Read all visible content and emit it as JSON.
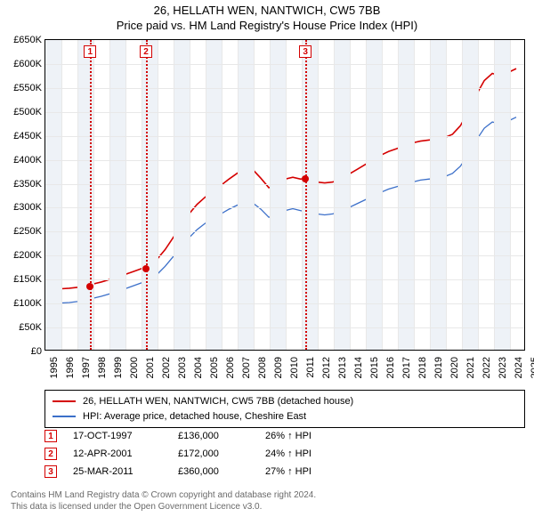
{
  "title_line1": "26, HELLATH WEN, NANTWICH, CW5 7BB",
  "title_line2": "Price paid vs. HM Land Registry's House Price Index (HPI)",
  "chart": {
    "type": "line",
    "background_color": "#ffffff",
    "grid_color": "#e8e8e8",
    "band_color": "#eef2f7",
    "xlim": [
      1995,
      2025
    ],
    "ylim": [
      0,
      650000
    ],
    "ylabels": [
      "£0",
      "£50K",
      "£100K",
      "£150K",
      "£200K",
      "£250K",
      "£300K",
      "£350K",
      "£400K",
      "£450K",
      "£500K",
      "£550K",
      "£600K",
      "£650K"
    ],
    "xticks": [
      1995,
      1996,
      1997,
      1998,
      1999,
      2000,
      2001,
      2002,
      2003,
      2004,
      2005,
      2006,
      2007,
      2008,
      2009,
      2010,
      2011,
      2012,
      2013,
      2014,
      2015,
      2016,
      2017,
      2018,
      2019,
      2020,
      2021,
      2022,
      2023,
      2024,
      2025
    ],
    "band_years": [
      [
        1995,
        1996
      ],
      [
        1997,
        1998
      ],
      [
        1999,
        2000
      ],
      [
        2001,
        2002
      ],
      [
        2003,
        2004
      ],
      [
        2005,
        2006
      ],
      [
        2007,
        2008
      ],
      [
        2009,
        2010
      ],
      [
        2011,
        2012
      ],
      [
        2013,
        2014
      ],
      [
        2015,
        2016
      ],
      [
        2017,
        2018
      ],
      [
        2019,
        2020
      ],
      [
        2021,
        2022
      ],
      [
        2023,
        2024
      ]
    ],
    "series": [
      {
        "name": "red",
        "color": "#d40000",
        "width": 1.6,
        "points": [
          [
            1995.0,
            130000
          ],
          [
            1995.5,
            129000
          ],
          [
            1996.0,
            128000
          ],
          [
            1996.5,
            129000
          ],
          [
            1997.0,
            131000
          ],
          [
            1997.5,
            134000
          ],
          [
            1997.8,
            136000
          ],
          [
            1998.0,
            138000
          ],
          [
            1998.5,
            142000
          ],
          [
            1999.0,
            147000
          ],
          [
            1999.5,
            152000
          ],
          [
            2000.0,
            158000
          ],
          [
            2000.5,
            164000
          ],
          [
            2001.0,
            170000
          ],
          [
            2001.28,
            172000
          ],
          [
            2001.5,
            176000
          ],
          [
            2002.0,
            190000
          ],
          [
            2002.5,
            210000
          ],
          [
            2003.0,
            235000
          ],
          [
            2003.5,
            260000
          ],
          [
            2004.0,
            285000
          ],
          [
            2004.5,
            305000
          ],
          [
            2005.0,
            320000
          ],
          [
            2005.5,
            332000
          ],
          [
            2006.0,
            345000
          ],
          [
            2006.5,
            358000
          ],
          [
            2007.0,
            370000
          ],
          [
            2007.5,
            380000
          ],
          [
            2008.0,
            378000
          ],
          [
            2008.5,
            360000
          ],
          [
            2009.0,
            340000
          ],
          [
            2009.5,
            345000
          ],
          [
            2010.0,
            358000
          ],
          [
            2010.5,
            362000
          ],
          [
            2011.0,
            358000
          ],
          [
            2011.23,
            360000
          ],
          [
            2011.5,
            356000
          ],
          [
            2012.0,
            352000
          ],
          [
            2012.5,
            350000
          ],
          [
            2013.0,
            352000
          ],
          [
            2013.5,
            358000
          ],
          [
            2014.0,
            368000
          ],
          [
            2014.5,
            378000
          ],
          [
            2015.0,
            388000
          ],
          [
            2015.5,
            398000
          ],
          [
            2016.0,
            408000
          ],
          [
            2016.5,
            416000
          ],
          [
            2017.0,
            422000
          ],
          [
            2017.5,
            428000
          ],
          [
            2018.0,
            434000
          ],
          [
            2018.5,
            438000
          ],
          [
            2019.0,
            440000
          ],
          [
            2019.5,
            442000
          ],
          [
            2020.0,
            445000
          ],
          [
            2020.5,
            452000
          ],
          [
            2021.0,
            470000
          ],
          [
            2021.5,
            500000
          ],
          [
            2022.0,
            535000
          ],
          [
            2022.5,
            565000
          ],
          [
            2023.0,
            580000
          ],
          [
            2023.5,
            575000
          ],
          [
            2024.0,
            582000
          ],
          [
            2024.5,
            590000
          ]
        ]
      },
      {
        "name": "blue",
        "color": "#3b6fc9",
        "width": 1.3,
        "points": [
          [
            1995.0,
            100000
          ],
          [
            1995.5,
            99000
          ],
          [
            1996.0,
            98000
          ],
          [
            1996.5,
            99000
          ],
          [
            1997.0,
            101000
          ],
          [
            1997.5,
            104000
          ],
          [
            1998.0,
            108000
          ],
          [
            1998.5,
            112000
          ],
          [
            1999.0,
            117000
          ],
          [
            1999.5,
            122000
          ],
          [
            2000.0,
            128000
          ],
          [
            2000.5,
            134000
          ],
          [
            2001.0,
            140000
          ],
          [
            2001.5,
            146000
          ],
          [
            2002.0,
            158000
          ],
          [
            2002.5,
            175000
          ],
          [
            2003.0,
            195000
          ],
          [
            2003.5,
            215000
          ],
          [
            2004.0,
            235000
          ],
          [
            2004.5,
            252000
          ],
          [
            2005.0,
            265000
          ],
          [
            2005.5,
            275000
          ],
          [
            2006.0,
            285000
          ],
          [
            2006.5,
            295000
          ],
          [
            2007.0,
            303000
          ],
          [
            2007.5,
            310000
          ],
          [
            2008.0,
            308000
          ],
          [
            2008.5,
            295000
          ],
          [
            2009.0,
            278000
          ],
          [
            2009.5,
            282000
          ],
          [
            2010.0,
            292000
          ],
          [
            2010.5,
            296000
          ],
          [
            2011.0,
            292000
          ],
          [
            2011.5,
            288000
          ],
          [
            2012.0,
            285000
          ],
          [
            2012.5,
            283000
          ],
          [
            2013.0,
            285000
          ],
          [
            2013.5,
            290000
          ],
          [
            2014.0,
            298000
          ],
          [
            2014.5,
            306000
          ],
          [
            2015.0,
            314000
          ],
          [
            2015.5,
            322000
          ],
          [
            2016.0,
            330000
          ],
          [
            2016.5,
            337000
          ],
          [
            2017.0,
            342000
          ],
          [
            2017.5,
            347000
          ],
          [
            2018.0,
            352000
          ],
          [
            2018.5,
            356000
          ],
          [
            2019.0,
            358000
          ],
          [
            2019.5,
            360000
          ],
          [
            2020.0,
            363000
          ],
          [
            2020.5,
            370000
          ],
          [
            2021.0,
            385000
          ],
          [
            2021.5,
            410000
          ],
          [
            2022.0,
            440000
          ],
          [
            2022.5,
            465000
          ],
          [
            2023.0,
            478000
          ],
          [
            2023.5,
            474000
          ],
          [
            2024.0,
            480000
          ],
          [
            2024.5,
            488000
          ]
        ]
      }
    ],
    "markers": [
      {
        "n": "1",
        "year": 1997.79,
        "value": 136000,
        "color": "#d40000"
      },
      {
        "n": "2",
        "year": 2001.28,
        "value": 172000,
        "color": "#d40000"
      },
      {
        "n": "3",
        "year": 2011.23,
        "value": 360000,
        "color": "#d40000"
      }
    ]
  },
  "legend": {
    "items": [
      {
        "color": "#d40000",
        "label": "26, HELLATH WEN, NANTWICH, CW5 7BB (detached house)"
      },
      {
        "color": "#3b6fc9",
        "label": "HPI: Average price, detached house, Cheshire East"
      }
    ]
  },
  "sales": [
    {
      "n": "1",
      "color": "#d40000",
      "date": "17-OCT-1997",
      "price": "£136,000",
      "hpi": "26% ↑ HPI"
    },
    {
      "n": "2",
      "color": "#d40000",
      "date": "12-APR-2001",
      "price": "£172,000",
      "hpi": "24% ↑ HPI"
    },
    {
      "n": "3",
      "color": "#d40000",
      "date": "25-MAR-2011",
      "price": "£360,000",
      "hpi": "27% ↑ HPI"
    }
  ],
  "footer_line1": "Contains HM Land Registry data © Crown copyright and database right 2024.",
  "footer_line2": "This data is licensed under the Open Government Licence v3.0."
}
